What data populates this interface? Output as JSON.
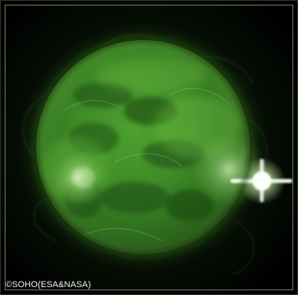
{
  "image": {
    "subject": "sun",
    "palette": {
      "background": "#050a04",
      "disk_core": "#4fa12f",
      "disk_mid": "#2f7a1d",
      "disk_edge": "#0f2e0a",
      "highlight": "#f7ffe8"
    }
  },
  "credit": {
    "text": "©SOHO(ESA&NASA)"
  }
}
